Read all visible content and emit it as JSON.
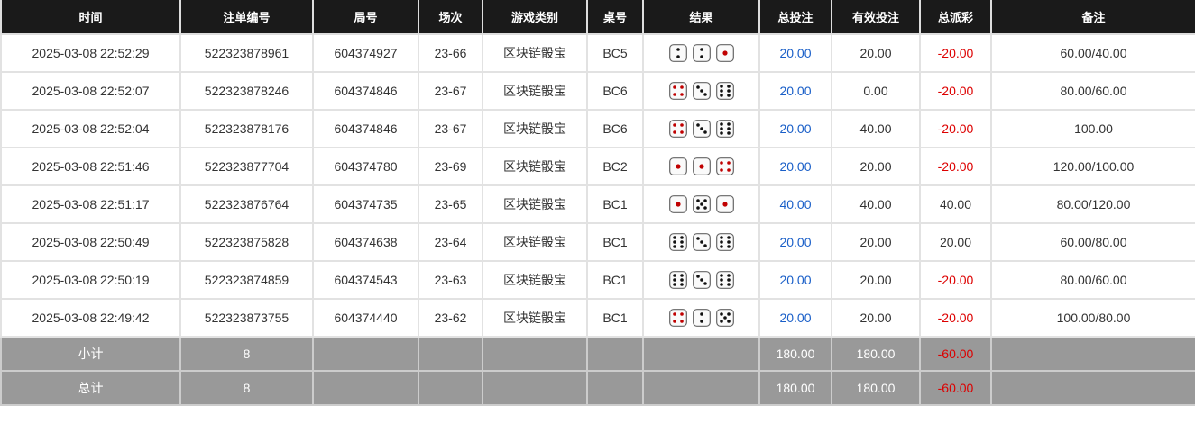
{
  "headers": [
    "时间",
    "注单编号",
    "局号",
    "场次",
    "游戏类别",
    "桌号",
    "结果",
    "总投注",
    "有效投注",
    "总派彩",
    "备注"
  ],
  "rows": [
    {
      "time": "2025-03-08 22:52:29",
      "bet_id": "522323878961",
      "round": "604374927",
      "session": "23-66",
      "game": "区块链骰宝",
      "table": "BC5",
      "dice": [
        2,
        2,
        1
      ],
      "total_bet": "20.00",
      "valid_bet": "20.00",
      "payout": "-20.00",
      "note": "60.00/40.00"
    },
    {
      "time": "2025-03-08 22:52:07",
      "bet_id": "522323878246",
      "round": "604374846",
      "session": "23-67",
      "game": "区块链骰宝",
      "table": "BC6",
      "dice": [
        4,
        3,
        6
      ],
      "total_bet": "20.00",
      "valid_bet": "0.00",
      "payout": "-20.00",
      "note": "80.00/60.00"
    },
    {
      "time": "2025-03-08 22:52:04",
      "bet_id": "522323878176",
      "round": "604374846",
      "session": "23-67",
      "game": "区块链骰宝",
      "table": "BC6",
      "dice": [
        4,
        3,
        6
      ],
      "total_bet": "20.00",
      "valid_bet": "40.00",
      "payout": "-20.00",
      "note": "100.00"
    },
    {
      "time": "2025-03-08 22:51:46",
      "bet_id": "522323877704",
      "round": "604374780",
      "session": "23-69",
      "game": "区块链骰宝",
      "table": "BC2",
      "dice": [
        1,
        1,
        4
      ],
      "total_bet": "20.00",
      "valid_bet": "20.00",
      "payout": "-20.00",
      "note": "120.00/100.00"
    },
    {
      "time": "2025-03-08 22:51:17",
      "bet_id": "522323876764",
      "round": "604374735",
      "session": "23-65",
      "game": "区块链骰宝",
      "table": "BC1",
      "dice": [
        1,
        5,
        1
      ],
      "total_bet": "40.00",
      "valid_bet": "40.00",
      "payout": "40.00",
      "note": "80.00/120.00"
    },
    {
      "time": "2025-03-08 22:50:49",
      "bet_id": "522323875828",
      "round": "604374638",
      "session": "23-64",
      "game": "区块链骰宝",
      "table": "BC1",
      "dice": [
        6,
        3,
        6
      ],
      "total_bet": "20.00",
      "valid_bet": "20.00",
      "payout": "20.00",
      "note": "60.00/80.00"
    },
    {
      "time": "2025-03-08 22:50:19",
      "bet_id": "522323874859",
      "round": "604374543",
      "session": "23-63",
      "game": "区块链骰宝",
      "table": "BC1",
      "dice": [
        6,
        3,
        6
      ],
      "total_bet": "20.00",
      "valid_bet": "20.00",
      "payout": "-20.00",
      "note": "80.00/60.00"
    },
    {
      "time": "2025-03-08 22:49:42",
      "bet_id": "522323873755",
      "round": "604374440",
      "session": "23-62",
      "game": "区块链骰宝",
      "table": "BC1",
      "dice": [
        4,
        2,
        5
      ],
      "total_bet": "20.00",
      "valid_bet": "20.00",
      "payout": "-20.00",
      "note": "100.00/80.00"
    }
  ],
  "summary": [
    {
      "label": "小计",
      "count": "8",
      "total_bet": "180.00",
      "valid_bet": "180.00",
      "payout": "-60.00"
    },
    {
      "label": "总计",
      "count": "8",
      "total_bet": "180.00",
      "valid_bet": "180.00",
      "payout": "-60.00"
    }
  ],
  "colors": {
    "header_bg": "#1a1a1a",
    "bet_blue": "#1a5fc8",
    "loss_red": "#d00",
    "summary_bg": "#999",
    "red_pip": "#c00000"
  }
}
